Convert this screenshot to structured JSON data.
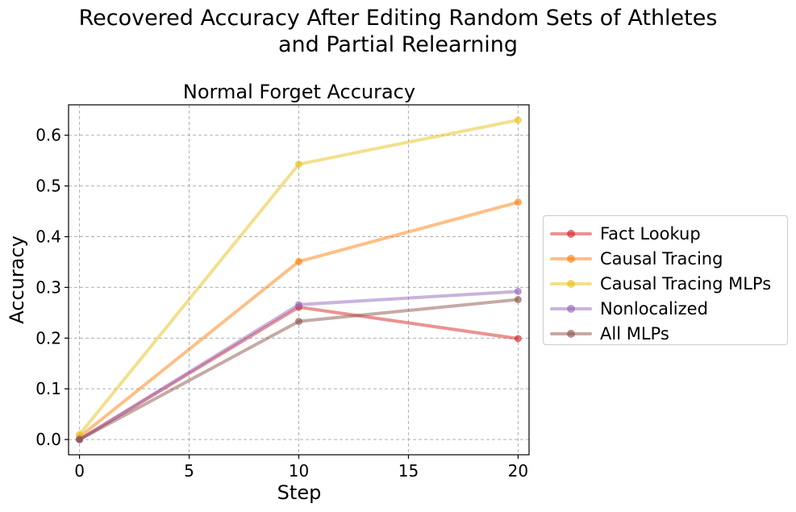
{
  "figure": {
    "suptitle": "Recovered Accuracy After Editing Random Sets of Athletes\nand Partial Relearning"
  },
  "chart_data": {
    "type": "line",
    "title": "Normal Forget Accuracy",
    "xlabel": "Step",
    "ylabel": "Accuracy",
    "x": [
      0,
      10,
      20
    ],
    "xlim": [
      -0.5,
      20.5
    ],
    "ylim": [
      -0.03,
      0.66
    ],
    "xticks": [
      "0",
      "5",
      "10",
      "15",
      "20"
    ],
    "yticks": [
      "0.0",
      "0.1",
      "0.2",
      "0.3",
      "0.4",
      "0.5",
      "0.6"
    ],
    "grid": true,
    "legend_position": "right, outside plot",
    "series": [
      {
        "name": "Fact Lookup",
        "color": "#d62728",
        "values": [
          0.0,
          0.261,
          0.199
        ]
      },
      {
        "name": "Causal Tracing",
        "color": "#ff7f0e",
        "values": [
          0.005,
          0.351,
          0.468
        ]
      },
      {
        "name": "Causal Tracing MLPs",
        "color": "#e8c21c",
        "values": [
          0.01,
          0.543,
          0.63
        ]
      },
      {
        "name": "Nonlocalized",
        "color": "#9467bd",
        "values": [
          0.0,
          0.266,
          0.292
        ]
      },
      {
        "name": "All MLPs",
        "color": "#8c564b",
        "values": [
          0.0,
          0.233,
          0.276
        ]
      }
    ]
  }
}
